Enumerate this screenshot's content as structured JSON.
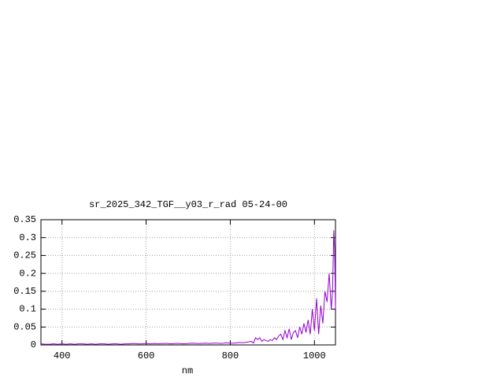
{
  "chart_data": {
    "type": "line",
    "title": "sr_2025_342_TGF__y03_r_rad 05-24-00",
    "x_label": "nm",
    "x": [
      350,
      360,
      370,
      380,
      390,
      400,
      410,
      420,
      430,
      440,
      450,
      460,
      470,
      480,
      490,
      500,
      510,
      520,
      530,
      540,
      550,
      560,
      570,
      580,
      590,
      600,
      610,
      620,
      630,
      640,
      650,
      660,
      670,
      680,
      690,
      700,
      710,
      720,
      730,
      740,
      750,
      760,
      770,
      780,
      790,
      800,
      810,
      820,
      830,
      840,
      850,
      855,
      860,
      865,
      870,
      875,
      880,
      885,
      890,
      895,
      900,
      905,
      910,
      915,
      920,
      925,
      930,
      935,
      940,
      945,
      950,
      955,
      960,
      965,
      970,
      975,
      980,
      985,
      990,
      995,
      1000,
      1005,
      1010,
      1015,
      1020,
      1025,
      1030,
      1035,
      1040,
      1043,
      1046,
      1048,
      1050
    ],
    "series": [
      {
        "name": "sr_2025_342_TGF__y03_r_rad",
        "color": "#9400d3",
        "values": [
          0.003,
          0.002,
          0.002,
          0.003,
          0.002,
          0.003,
          0.002,
          0.003,
          0.002,
          0.003,
          0.003,
          0.002,
          0.003,
          0.002,
          0.003,
          0.003,
          0.002,
          0.003,
          0.003,
          0.002,
          0.003,
          0.003,
          0.004,
          0.003,
          0.003,
          0.004,
          0.003,
          0.004,
          0.003,
          0.004,
          0.004,
          0.003,
          0.004,
          0.004,
          0.003,
          0.004,
          0.005,
          0.004,
          0.004,
          0.005,
          0.004,
          0.005,
          0.005,
          0.004,
          0.006,
          0.005,
          0.005,
          0.007,
          0.006,
          0.008,
          0.01,
          0.005,
          0.02,
          0.015,
          0.02,
          0.01,
          0.015,
          0.012,
          0.01,
          0.015,
          0.012,
          0.02,
          0.015,
          0.025,
          0.03,
          0.015,
          0.04,
          0.02,
          0.045,
          0.015,
          0.035,
          0.04,
          0.02,
          0.05,
          0.03,
          0.06,
          0.035,
          0.07,
          0.03,
          0.1,
          0.04,
          0.13,
          0.03,
          0.11,
          0.06,
          0.15,
          0.12,
          0.2,
          0.1,
          0.15,
          0.32,
          0.27,
          0.1
        ]
      }
    ],
    "xlim": [
      350,
      1050
    ],
    "xticks": [
      400,
      600,
      800,
      1000
    ],
    "ylim": [
      0,
      0.35
    ],
    "yticks": [
      0,
      0.05,
      0.1,
      0.15,
      0.2,
      0.25,
      0.3,
      0.35
    ],
    "grid": true
  }
}
